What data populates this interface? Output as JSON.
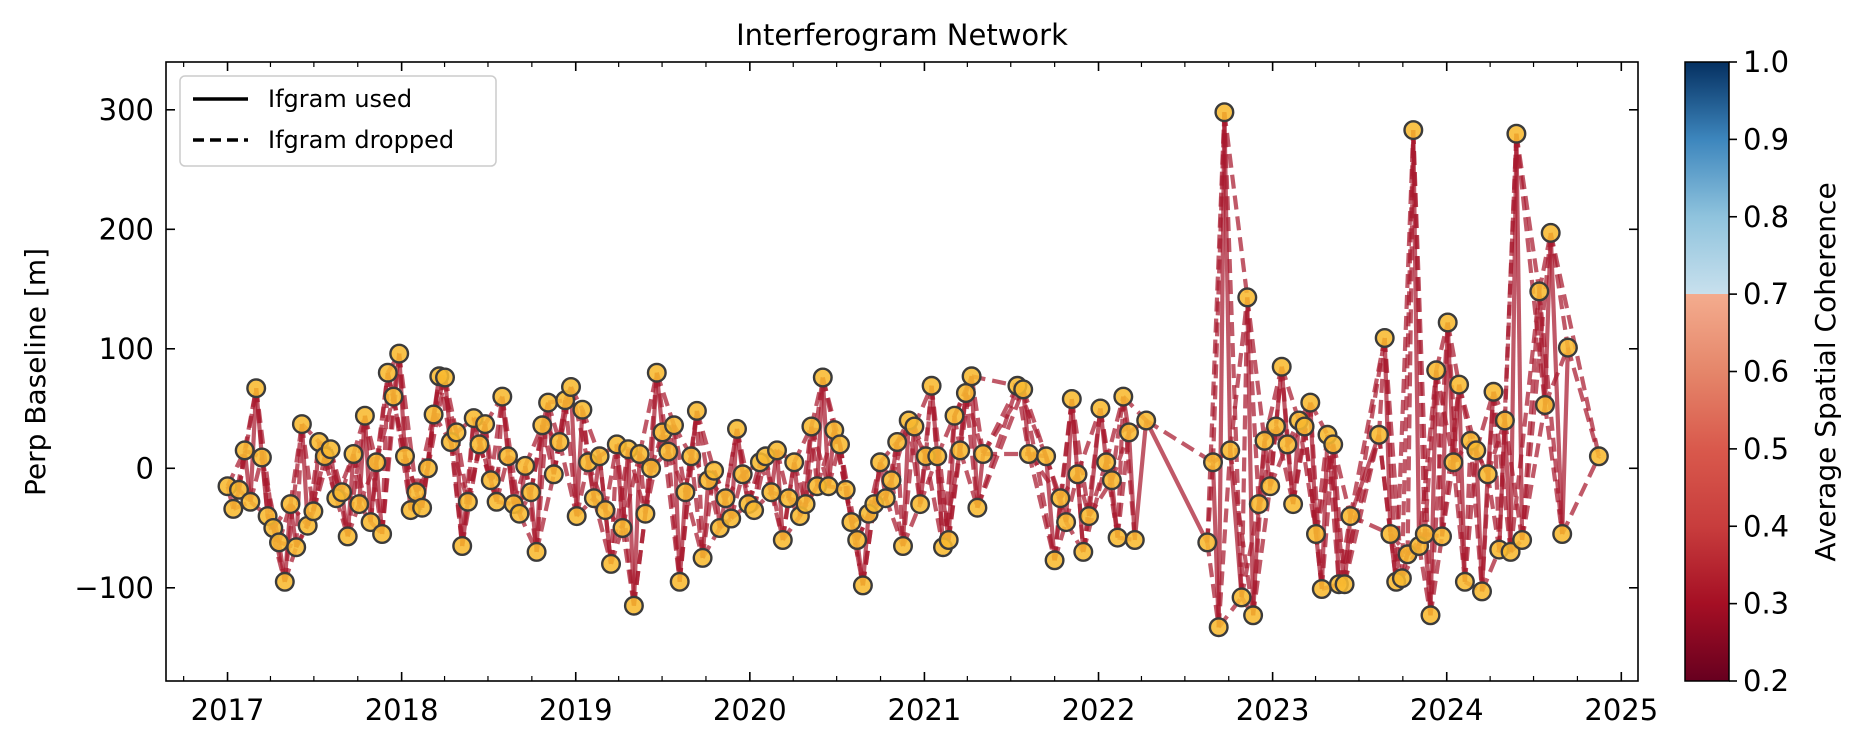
{
  "chart_data": {
    "type": "scatter",
    "title": "Interferogram Network",
    "xlabel": "",
    "ylabel": "Perp Baseline [m]",
    "x_tick_labels": [
      "2017",
      "2018",
      "2019",
      "2020",
      "2021",
      "2022",
      "2023",
      "2024",
      "2025"
    ],
    "y_tick_labels": [
      {
        "value": 300,
        "label": "300"
      },
      {
        "value": 200,
        "label": "200"
      },
      {
        "value": 100,
        "label": "100"
      },
      {
        "value": 0,
        "label": "0"
      },
      {
        "value": -100,
        "label": "−100"
      }
    ],
    "xlim": [
      "2016-08-25",
      "2025-02-05"
    ],
    "ylim": [
      -178,
      340
    ],
    "legend": {
      "placement": "upper left",
      "entries": [
        {
          "label": "Ifgram used",
          "style": "solid"
        },
        {
          "label": "Ifgram dropped",
          "style": "dashed"
        }
      ]
    },
    "colorbar": {
      "label": "Average Spatial Coherence",
      "range": [
        0.2,
        1.0
      ],
      "tick_labels": [
        "1.0",
        "0.9",
        "0.8",
        "0.7",
        "0.6",
        "0.5",
        "0.4",
        "0.3",
        "0.2"
      ],
      "colormap": "RdBu",
      "stops": [
        {
          "v": 0.2,
          "color": "#67001f"
        },
        {
          "v": 0.3,
          "color": "#a50f24"
        },
        {
          "v": 0.4,
          "color": "#c83d3d"
        },
        {
          "v": 0.5,
          "color": "#d9594c"
        },
        {
          "v": 0.6,
          "color": "#e5866a"
        },
        {
          "v": 0.7,
          "color": "#f4ac8e"
        },
        {
          "v": 0.7,
          "color": "#c8e0ed"
        },
        {
          "v": 0.8,
          "color": "#8fc3dd"
        },
        {
          "v": 0.9,
          "color": "#3d86bd"
        },
        {
          "v": 1.0,
          "color": "#053061"
        }
      ]
    },
    "colors": {
      "node_fill": "#f8b930",
      "node_edge": "#3b3b3b",
      "edge_color": "#a8192e"
    },
    "acquisitions": [
      {
        "date": "2017-01-01",
        "bperp": -15
      },
      {
        "date": "2017-01-13",
        "bperp": -34
      },
      {
        "date": "2017-01-25",
        "bperp": -18
      },
      {
        "date": "2017-02-06",
        "bperp": 15
      },
      {
        "date": "2017-02-18",
        "bperp": -28
      },
      {
        "date": "2017-03-02",
        "bperp": 67
      },
      {
        "date": "2017-03-14",
        "bperp": 9
      },
      {
        "date": "2017-03-26",
        "bperp": -40
      },
      {
        "date": "2017-04-07",
        "bperp": -50
      },
      {
        "date": "2017-04-19",
        "bperp": -62
      },
      {
        "date": "2017-05-01",
        "bperp": -95
      },
      {
        "date": "2017-05-13",
        "bperp": -30
      },
      {
        "date": "2017-05-25",
        "bperp": -66
      },
      {
        "date": "2017-06-06",
        "bperp": 37
      },
      {
        "date": "2017-06-18",
        "bperp": -48
      },
      {
        "date": "2017-06-30",
        "bperp": -36
      },
      {
        "date": "2017-07-12",
        "bperp": 22
      },
      {
        "date": "2017-07-24",
        "bperp": 10
      },
      {
        "date": "2017-08-05",
        "bperp": 16
      },
      {
        "date": "2017-08-17",
        "bperp": -25
      },
      {
        "date": "2017-08-29",
        "bperp": -20
      },
      {
        "date": "2017-09-10",
        "bperp": -57
      },
      {
        "date": "2017-09-22",
        "bperp": 12
      },
      {
        "date": "2017-10-04",
        "bperp": -30
      },
      {
        "date": "2017-10-16",
        "bperp": 44
      },
      {
        "date": "2017-10-28",
        "bperp": -45
      },
      {
        "date": "2017-11-09",
        "bperp": 5
      },
      {
        "date": "2017-11-21",
        "bperp": -55
      },
      {
        "date": "2017-12-03",
        "bperp": 80
      },
      {
        "date": "2017-12-15",
        "bperp": 60
      },
      {
        "date": "2017-12-27",
        "bperp": 96
      },
      {
        "date": "2018-01-08",
        "bperp": 10
      },
      {
        "date": "2018-01-20",
        "bperp": -35
      },
      {
        "date": "2018-02-01",
        "bperp": -20
      },
      {
        "date": "2018-02-13",
        "bperp": -33
      },
      {
        "date": "2018-02-25",
        "bperp": 0
      },
      {
        "date": "2018-03-09",
        "bperp": 45
      },
      {
        "date": "2018-03-21",
        "bperp": 77
      },
      {
        "date": "2018-04-02",
        "bperp": 76
      },
      {
        "date": "2018-04-14",
        "bperp": 22
      },
      {
        "date": "2018-04-26",
        "bperp": 30
      },
      {
        "date": "2018-05-08",
        "bperp": -65
      },
      {
        "date": "2018-05-20",
        "bperp": -28
      },
      {
        "date": "2018-06-01",
        "bperp": 42
      },
      {
        "date": "2018-06-13",
        "bperp": 20
      },
      {
        "date": "2018-06-25",
        "bperp": 37
      },
      {
        "date": "2018-07-07",
        "bperp": -10
      },
      {
        "date": "2018-07-19",
        "bperp": -28
      },
      {
        "date": "2018-07-31",
        "bperp": 60
      },
      {
        "date": "2018-08-12",
        "bperp": 10
      },
      {
        "date": "2018-08-24",
        "bperp": -30
      },
      {
        "date": "2018-09-05",
        "bperp": -38
      },
      {
        "date": "2018-09-17",
        "bperp": 2
      },
      {
        "date": "2018-09-29",
        "bperp": -20
      },
      {
        "date": "2018-10-11",
        "bperp": -70
      },
      {
        "date": "2018-10-23",
        "bperp": 36
      },
      {
        "date": "2018-11-04",
        "bperp": 55
      },
      {
        "date": "2018-11-16",
        "bperp": -5
      },
      {
        "date": "2018-11-28",
        "bperp": 22
      },
      {
        "date": "2018-12-10",
        "bperp": 57
      },
      {
        "date": "2018-12-22",
        "bperp": 68
      },
      {
        "date": "2019-01-03",
        "bperp": -40
      },
      {
        "date": "2019-01-15",
        "bperp": 49
      },
      {
        "date": "2019-01-27",
        "bperp": 5
      },
      {
        "date": "2019-02-08",
        "bperp": -25
      },
      {
        "date": "2019-02-20",
        "bperp": 10
      },
      {
        "date": "2019-03-04",
        "bperp": -35
      },
      {
        "date": "2019-03-16",
        "bperp": -80
      },
      {
        "date": "2019-03-28",
        "bperp": 20
      },
      {
        "date": "2019-04-09",
        "bperp": -50
      },
      {
        "date": "2019-04-21",
        "bperp": 16
      },
      {
        "date": "2019-05-03",
        "bperp": -115
      },
      {
        "date": "2019-05-15",
        "bperp": 12
      },
      {
        "date": "2019-05-27",
        "bperp": -38
      },
      {
        "date": "2019-06-08",
        "bperp": 0
      },
      {
        "date": "2019-06-20",
        "bperp": 80
      },
      {
        "date": "2019-07-02",
        "bperp": 30
      },
      {
        "date": "2019-07-14",
        "bperp": 14
      },
      {
        "date": "2019-07-26",
        "bperp": 36
      },
      {
        "date": "2019-08-07",
        "bperp": -95
      },
      {
        "date": "2019-08-19",
        "bperp": -20
      },
      {
        "date": "2019-08-31",
        "bperp": 10
      },
      {
        "date": "2019-09-12",
        "bperp": 48
      },
      {
        "date": "2019-09-24",
        "bperp": -75
      },
      {
        "date": "2019-10-06",
        "bperp": -10
      },
      {
        "date": "2019-10-18",
        "bperp": -2
      },
      {
        "date": "2019-10-30",
        "bperp": -50
      },
      {
        "date": "2019-11-11",
        "bperp": -25
      },
      {
        "date": "2019-11-23",
        "bperp": -42
      },
      {
        "date": "2019-12-05",
        "bperp": 33
      },
      {
        "date": "2019-12-17",
        "bperp": -5
      },
      {
        "date": "2019-12-29",
        "bperp": -30
      },
      {
        "date": "2020-01-10",
        "bperp": -35
      },
      {
        "date": "2020-01-22",
        "bperp": 5
      },
      {
        "date": "2020-02-03",
        "bperp": 10
      },
      {
        "date": "2020-02-15",
        "bperp": -20
      },
      {
        "date": "2020-02-27",
        "bperp": 15
      },
      {
        "date": "2020-03-10",
        "bperp": -60
      },
      {
        "date": "2020-03-22",
        "bperp": -25
      },
      {
        "date": "2020-04-03",
        "bperp": 5
      },
      {
        "date": "2020-04-15",
        "bperp": -40
      },
      {
        "date": "2020-04-27",
        "bperp": -30
      },
      {
        "date": "2020-05-09",
        "bperp": 35
      },
      {
        "date": "2020-05-21",
        "bperp": -15
      },
      {
        "date": "2020-06-02",
        "bperp": 76
      },
      {
        "date": "2020-06-14",
        "bperp": -15
      },
      {
        "date": "2020-06-26",
        "bperp": 32
      },
      {
        "date": "2020-07-08",
        "bperp": 20
      },
      {
        "date": "2020-07-20",
        "bperp": -18
      },
      {
        "date": "2020-08-01",
        "bperp": -45
      },
      {
        "date": "2020-08-13",
        "bperp": -60
      },
      {
        "date": "2020-08-25",
        "bperp": -98
      },
      {
        "date": "2020-09-06",
        "bperp": -38
      },
      {
        "date": "2020-09-18",
        "bperp": -30
      },
      {
        "date": "2020-09-30",
        "bperp": 5
      },
      {
        "date": "2020-10-12",
        "bperp": -25
      },
      {
        "date": "2020-10-24",
        "bperp": -10
      },
      {
        "date": "2020-11-05",
        "bperp": 22
      },
      {
        "date": "2020-11-17",
        "bperp": -65
      },
      {
        "date": "2020-11-29",
        "bperp": 40
      },
      {
        "date": "2020-12-11",
        "bperp": 35
      },
      {
        "date": "2020-12-23",
        "bperp": -30
      },
      {
        "date": "2021-01-04",
        "bperp": 10
      },
      {
        "date": "2021-01-16",
        "bperp": 69
      },
      {
        "date": "2021-01-28",
        "bperp": 10
      },
      {
        "date": "2021-02-09",
        "bperp": -66
      },
      {
        "date": "2021-02-21",
        "bperp": -60
      },
      {
        "date": "2021-03-05",
        "bperp": 44
      },
      {
        "date": "2021-03-17",
        "bperp": 15
      },
      {
        "date": "2021-03-29",
        "bperp": 63
      },
      {
        "date": "2021-04-10",
        "bperp": 77
      },
      {
        "date": "2021-04-22",
        "bperp": -33
      },
      {
        "date": "2021-05-04",
        "bperp": 12
      },
      {
        "date": "2021-07-15",
        "bperp": 69
      },
      {
        "date": "2021-07-27",
        "bperp": 66
      },
      {
        "date": "2021-08-08",
        "bperp": 12
      },
      {
        "date": "2021-09-13",
        "bperp": 10
      },
      {
        "date": "2021-10-01",
        "bperp": -77
      },
      {
        "date": "2021-10-13",
        "bperp": -25
      },
      {
        "date": "2021-10-25",
        "bperp": -45
      },
      {
        "date": "2021-11-06",
        "bperp": 58
      },
      {
        "date": "2021-11-18",
        "bperp": -5
      },
      {
        "date": "2021-11-30",
        "bperp": -70
      },
      {
        "date": "2021-12-12",
        "bperp": -40
      },
      {
        "date": "2022-01-05",
        "bperp": 50
      },
      {
        "date": "2022-01-17",
        "bperp": 5
      },
      {
        "date": "2022-01-29",
        "bperp": -10
      },
      {
        "date": "2022-02-10",
        "bperp": -58
      },
      {
        "date": "2022-02-22",
        "bperp": 60
      },
      {
        "date": "2022-03-06",
        "bperp": 30
      },
      {
        "date": "2022-03-18",
        "bperp": -60
      },
      {
        "date": "2022-04-11",
        "bperp": 40
      },
      {
        "date": "2022-08-17",
        "bperp": -62
      },
      {
        "date": "2022-08-29",
        "bperp": 5
      },
      {
        "date": "2022-09-10",
        "bperp": -133
      },
      {
        "date": "2022-09-22",
        "bperp": 298
      },
      {
        "date": "2022-10-04",
        "bperp": 15
      },
      {
        "date": "2022-10-28",
        "bperp": -108
      },
      {
        "date": "2022-11-09",
        "bperp": 143
      },
      {
        "date": "2022-11-21",
        "bperp": -123
      },
      {
        "date": "2022-12-03",
        "bperp": -30
      },
      {
        "date": "2022-12-15",
        "bperp": 23
      },
      {
        "date": "2022-12-27",
        "bperp": -15
      },
      {
        "date": "2023-01-08",
        "bperp": 35
      },
      {
        "date": "2023-01-20",
        "bperp": 85
      },
      {
        "date": "2023-02-01",
        "bperp": 20
      },
      {
        "date": "2023-02-13",
        "bperp": -30
      },
      {
        "date": "2023-02-25",
        "bperp": 40
      },
      {
        "date": "2023-03-09",
        "bperp": 35
      },
      {
        "date": "2023-03-21",
        "bperp": 55
      },
      {
        "date": "2023-04-02",
        "bperp": -55
      },
      {
        "date": "2023-04-14",
        "bperp": -101
      },
      {
        "date": "2023-04-26",
        "bperp": 28
      },
      {
        "date": "2023-05-08",
        "bperp": 20
      },
      {
        "date": "2023-05-20",
        "bperp": -97
      },
      {
        "date": "2023-06-01",
        "bperp": -97
      },
      {
        "date": "2023-06-13",
        "bperp": -40
      },
      {
        "date": "2023-08-12",
        "bperp": 28
      },
      {
        "date": "2023-08-24",
        "bperp": 109
      },
      {
        "date": "2023-09-05",
        "bperp": -55
      },
      {
        "date": "2023-09-17",
        "bperp": -95
      },
      {
        "date": "2023-09-29",
        "bperp": -92
      },
      {
        "date": "2023-10-11",
        "bperp": -72
      },
      {
        "date": "2023-10-23",
        "bperp": 283
      },
      {
        "date": "2023-11-04",
        "bperp": -65
      },
      {
        "date": "2023-11-16",
        "bperp": -55
      },
      {
        "date": "2023-11-28",
        "bperp": -123
      },
      {
        "date": "2023-12-10",
        "bperp": 82
      },
      {
        "date": "2023-12-22",
        "bperp": -57
      },
      {
        "date": "2024-01-03",
        "bperp": 122
      },
      {
        "date": "2024-01-15",
        "bperp": 5
      },
      {
        "date": "2024-01-27",
        "bperp": 70
      },
      {
        "date": "2024-02-08",
        "bperp": -95
      },
      {
        "date": "2024-02-20",
        "bperp": 23
      },
      {
        "date": "2024-03-03",
        "bperp": 15
      },
      {
        "date": "2024-03-15",
        "bperp": -103
      },
      {
        "date": "2024-03-27",
        "bperp": -5
      },
      {
        "date": "2024-04-08",
        "bperp": 64
      },
      {
        "date": "2024-04-20",
        "bperp": -68
      },
      {
        "date": "2024-05-02",
        "bperp": 40
      },
      {
        "date": "2024-05-14",
        "bperp": -70
      },
      {
        "date": "2024-05-26",
        "bperp": 280
      },
      {
        "date": "2024-06-07",
        "bperp": -60
      },
      {
        "date": "2024-07-13",
        "bperp": 148
      },
      {
        "date": "2024-07-25",
        "bperp": 53
      },
      {
        "date": "2024-08-06",
        "bperp": 197
      },
      {
        "date": "2024-08-30",
        "bperp": -55
      },
      {
        "date": "2024-09-11",
        "bperp": 101
      },
      {
        "date": "2024-11-15",
        "bperp": 10
      }
    ]
  }
}
